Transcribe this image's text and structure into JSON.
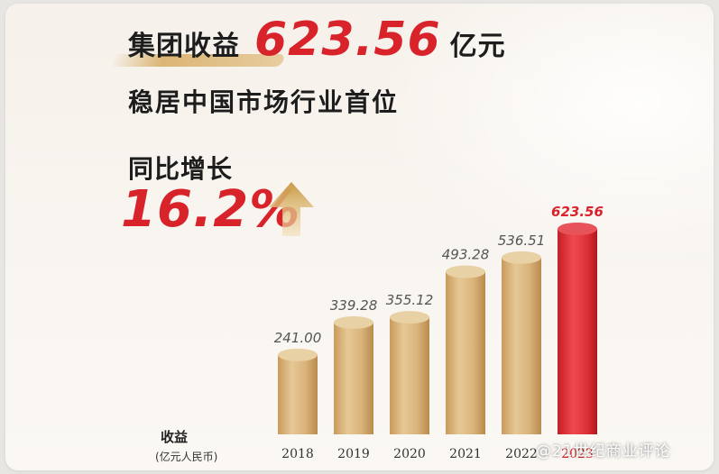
{
  "header": {
    "title_prefix": "集团收益",
    "title_value": "623.56",
    "title_suffix": "亿元",
    "subtitle": "稳居中国市场行业首位",
    "growth_label": "同比增长",
    "growth_value": "16.2%"
  },
  "watermark": "@21世纪商业评论",
  "colors": {
    "accent_red": "#d8232a",
    "bar_gold": "#d9b37a",
    "bar_red": "#dc2f36"
  },
  "icons": {
    "growth": "up-arrow-icon"
  },
  "chart_data": {
    "type": "bar",
    "categories": [
      "2018",
      "2019",
      "2020",
      "2021",
      "2022",
      "2023"
    ],
    "values": [
      241.0,
      339.28,
      355.12,
      493.28,
      536.51,
      623.56
    ],
    "value_labels": [
      "241.00",
      "339.28",
      "355.12",
      "493.28",
      "536.51",
      "623.56"
    ],
    "ylabel": "收益",
    "yunit": "(亿元人民币)",
    "ylim": [
      0,
      700
    ],
    "grid": false,
    "highlight_category": "2023"
  }
}
